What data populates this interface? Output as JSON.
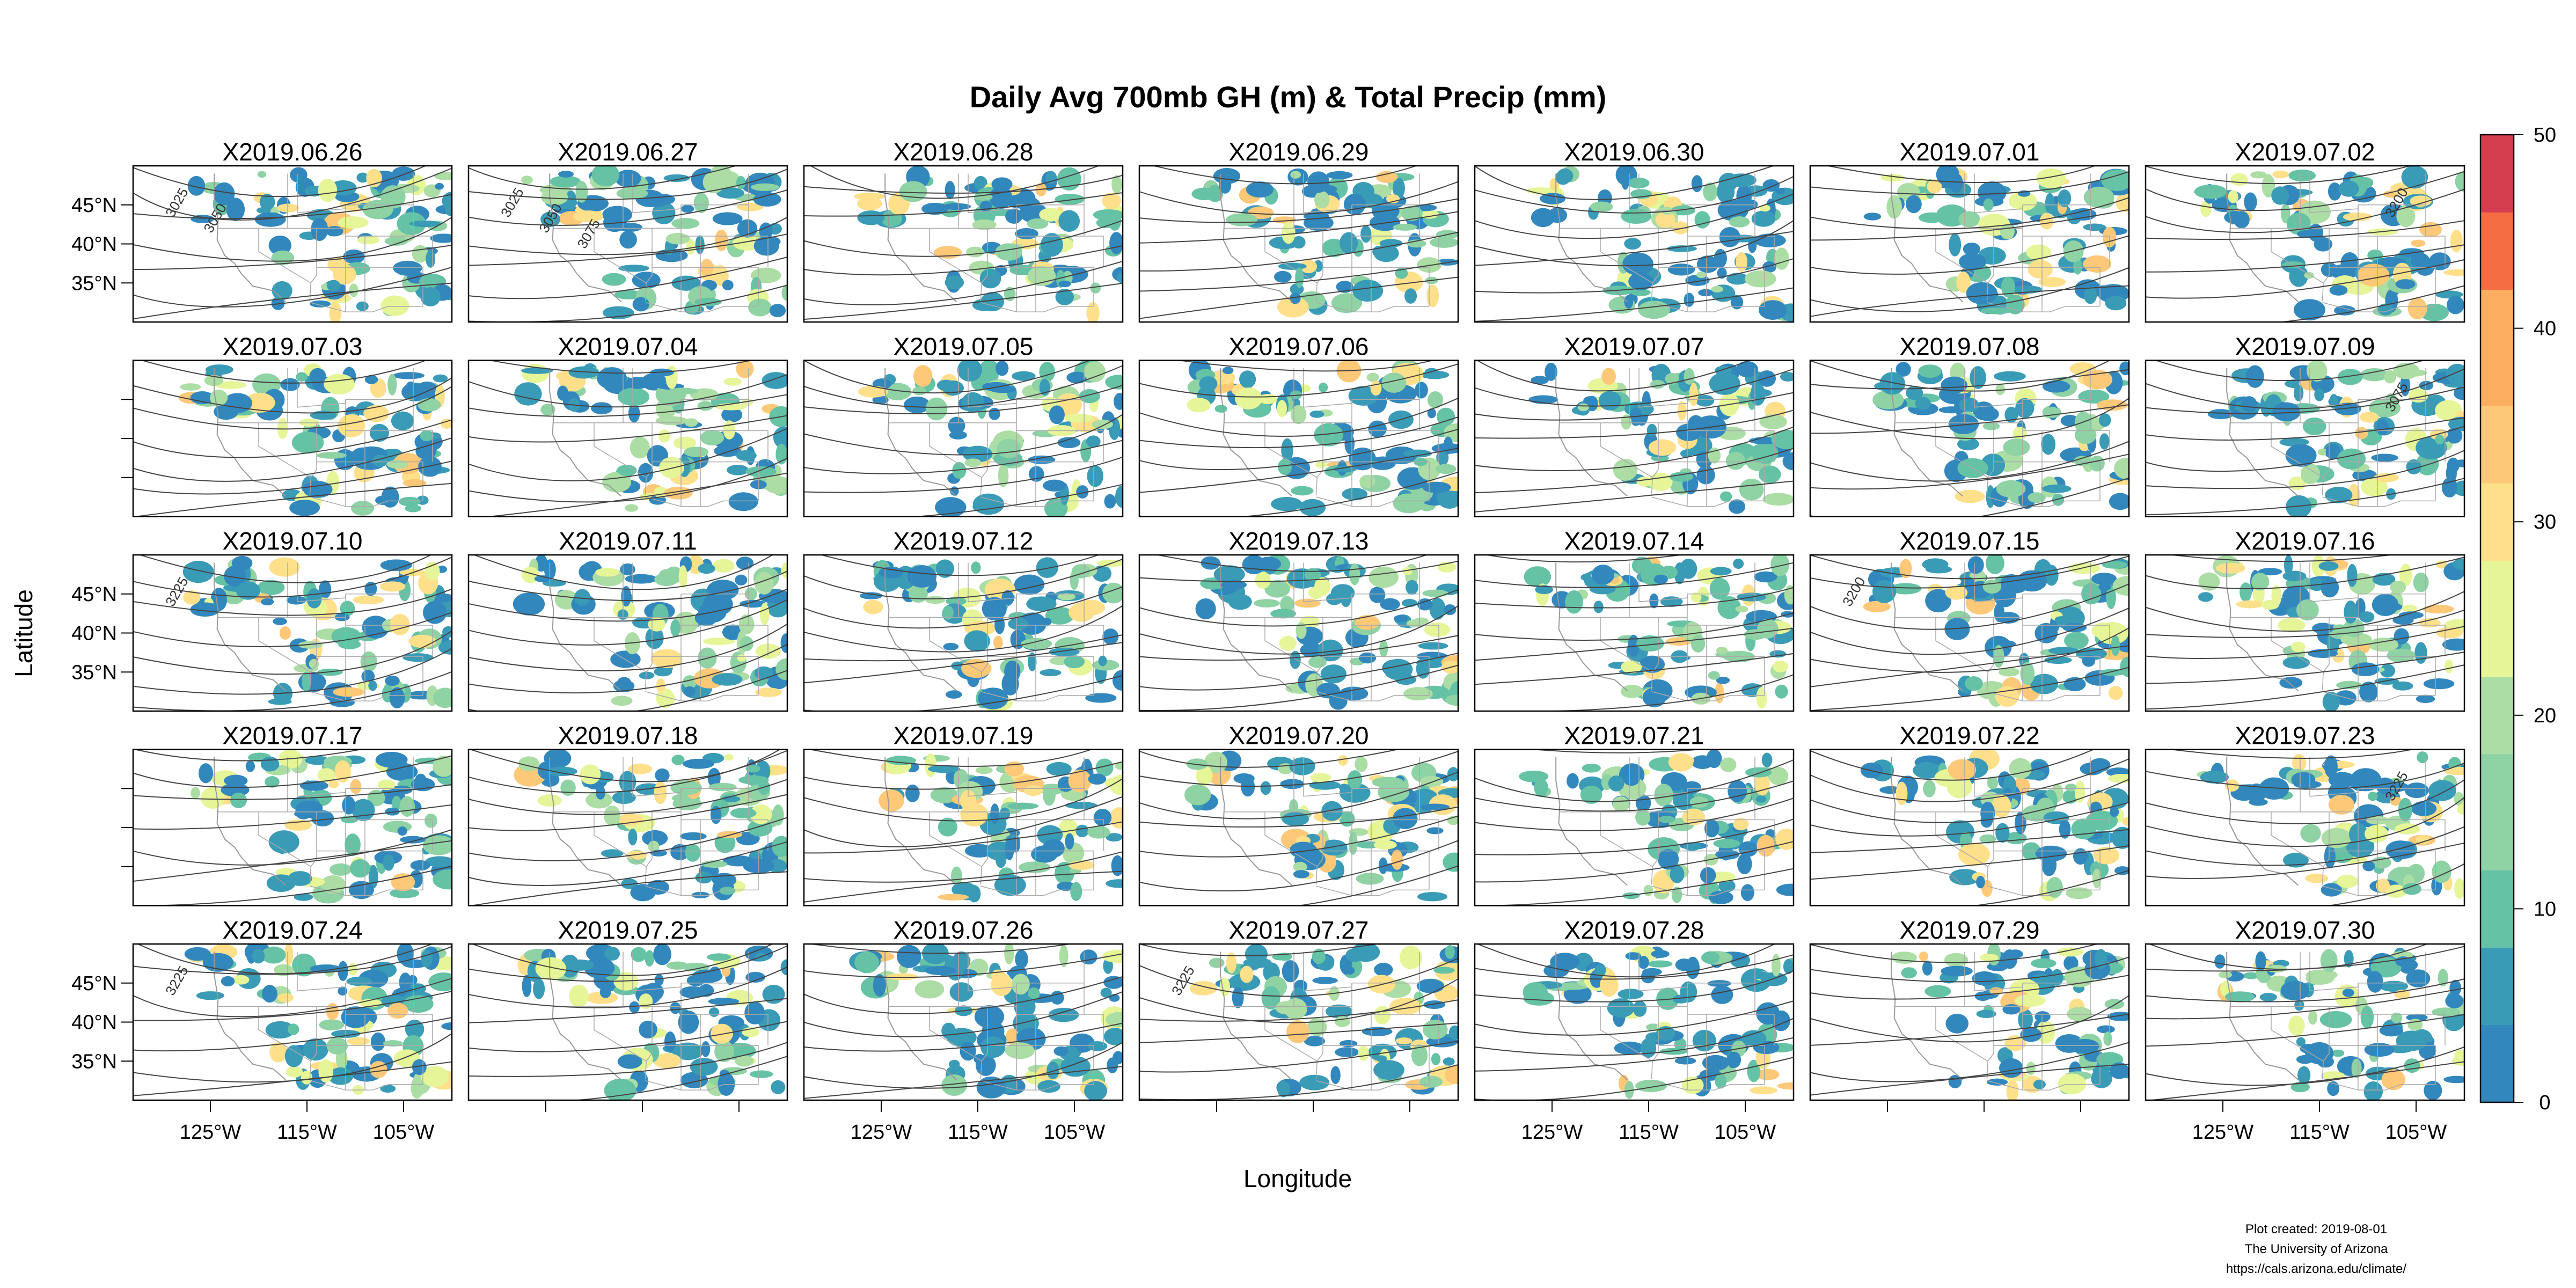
{
  "title": "Daily Avg 700mb GH (m) & Total Precip (mm)",
  "x_label": "Longitude",
  "y_label": "Latitude",
  "lon_lim": [
    -133,
    -100
  ],
  "lat_lim": [
    30,
    50
  ],
  "lon_ticks": [
    {
      "value": -125,
      "label": "125°W"
    },
    {
      "value": -115,
      "label": "115°W"
    },
    {
      "value": -105,
      "label": "105°W"
    }
  ],
  "lat_ticks": [
    {
      "value": 45,
      "label": "45°N"
    },
    {
      "value": 40,
      "label": "40°N"
    },
    {
      "value": 35,
      "label": "35°N"
    }
  ],
  "panels": [
    {
      "title": "X2019.06.26",
      "contour_labels": [
        "3025",
        "3050"
      ]
    },
    {
      "title": "X2019.06.27",
      "contour_labels": [
        "3025",
        "3050",
        "3075"
      ]
    },
    {
      "title": "X2019.06.28"
    },
    {
      "title": "X2019.06.29"
    },
    {
      "title": "X2019.06.30"
    },
    {
      "title": "X2019.07.01"
    },
    {
      "title": "X2019.07.02",
      "contour_labels": [
        "3200"
      ]
    },
    {
      "title": "X2019.07.03"
    },
    {
      "title": "X2019.07.04"
    },
    {
      "title": "X2019.07.05"
    },
    {
      "title": "X2019.07.06"
    },
    {
      "title": "X2019.07.07"
    },
    {
      "title": "X2019.07.08"
    },
    {
      "title": "X2019.07.09",
      "contour_labels": [
        "3075"
      ]
    },
    {
      "title": "X2019.07.10",
      "contour_labels": [
        "3225"
      ]
    },
    {
      "title": "X2019.07.11"
    },
    {
      "title": "X2019.07.12"
    },
    {
      "title": "X2019.07.13"
    },
    {
      "title": "X2019.07.14"
    },
    {
      "title": "X2019.07.15",
      "contour_labels": [
        "3200"
      ]
    },
    {
      "title": "X2019.07.16"
    },
    {
      "title": "X2019.07.17"
    },
    {
      "title": "X2019.07.18"
    },
    {
      "title": "X2019.07.19"
    },
    {
      "title": "X2019.07.20"
    },
    {
      "title": "X2019.07.21"
    },
    {
      "title": "X2019.07.22"
    },
    {
      "title": "X2019.07.23",
      "contour_labels": [
        "3225"
      ]
    },
    {
      "title": "X2019.07.24",
      "contour_labels": [
        "3225"
      ]
    },
    {
      "title": "X2019.07.25"
    },
    {
      "title": "X2019.07.26"
    },
    {
      "title": "X2019.07.27",
      "contour_labels": [
        "3225"
      ]
    },
    {
      "title": "X2019.07.28"
    },
    {
      "title": "X2019.07.29"
    },
    {
      "title": "X2019.07.30"
    }
  ],
  "colorbar": {
    "lim": [
      0,
      50
    ],
    "ticks": [
      0,
      10,
      20,
      30,
      40,
      50
    ],
    "palette": [
      "#3288bd",
      "#3a9bb7",
      "#66c2a5",
      "#8fd2a4",
      "#abdda4",
      "#e6f598",
      "#fee08b",
      "#fdc877",
      "#fdae61",
      "#f46d43",
      "#d53e4f"
    ]
  },
  "footer": [
    "Plot created: 2019-08-01",
    "The University of Arizona",
    "https://cals.arizona.edu/climate/"
  ]
}
